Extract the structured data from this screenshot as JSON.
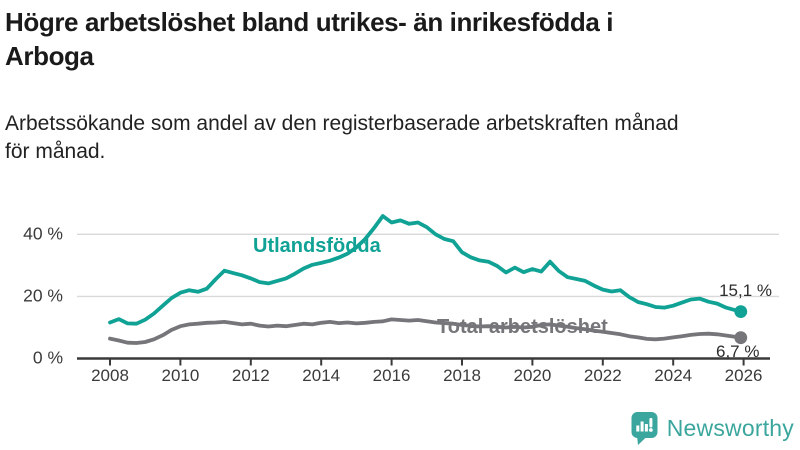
{
  "header": {
    "title_line1": "Högre arbetslöshet bland utrikes- än inrikesfödda i",
    "title_line2": "Arboga",
    "subtitle_line1": "Arbetssökande som andel av den registerbaserade arbetskraften månad",
    "subtitle_line2": "för månad."
  },
  "chart_data": {
    "type": "line",
    "title": "Högre arbetslöshet bland utrikes- än inrikesfödda i Arboga",
    "subtitle": "Arbetssökande som andel av den registerbaserade arbetskraften månad för månad.",
    "xlim": [
      2008,
      2026
    ],
    "ylim": [
      0,
      48
    ],
    "grid": "horizontal-only",
    "legend_position": "inline-labels-on-lines",
    "y_ticks": [
      {
        "value": 0,
        "label": "0 %"
      },
      {
        "value": 20,
        "label": "20 %"
      },
      {
        "value": 40,
        "label": "40 %"
      }
    ],
    "x_ticks": [
      2008,
      2010,
      2012,
      2014,
      2016,
      2018,
      2020,
      2022,
      2024,
      2026
    ],
    "x": [
      2008,
      2008.25,
      2008.5,
      2008.75,
      2009,
      2009.25,
      2009.5,
      2009.75,
      2010,
      2010.25,
      2010.5,
      2010.75,
      2011,
      2011.25,
      2011.5,
      2011.75,
      2012,
      2012.25,
      2012.5,
      2012.75,
      2013,
      2013.25,
      2013.5,
      2013.75,
      2014,
      2014.25,
      2014.5,
      2014.75,
      2015,
      2015.25,
      2015.5,
      2015.75,
      2016,
      2016.25,
      2016.5,
      2016.75,
      2017,
      2017.25,
      2017.5,
      2017.75,
      2018,
      2018.25,
      2018.5,
      2018.75,
      2019,
      2019.25,
      2019.5,
      2019.75,
      2020,
      2020.25,
      2020.5,
      2020.75,
      2021,
      2021.25,
      2021.5,
      2021.75,
      2022,
      2022.25,
      2022.5,
      2022.75,
      2023,
      2023.25,
      2023.5,
      2023.75,
      2024,
      2024.25,
      2024.5,
      2024.75,
      2025,
      2025.25,
      2025.5,
      2025.75,
      2025.92
    ],
    "series": [
      {
        "name": "Utlandsfödda",
        "color": "#10a295",
        "end_label": "15,1 %",
        "end_value": 15.1,
        "values": [
          11.6,
          12.7,
          11.3,
          11.2,
          12.5,
          14.5,
          17.0,
          19.5,
          21.2,
          22.0,
          21.5,
          22.5,
          25.5,
          28.3,
          27.5,
          26.8,
          25.8,
          24.6,
          24.2,
          25.0,
          25.8,
          27.3,
          29.0,
          30.2,
          30.8,
          31.5,
          32.5,
          33.8,
          35.8,
          38.5,
          42.0,
          45.9,
          43.8,
          44.5,
          43.4,
          43.8,
          42.3,
          40.0,
          38.5,
          37.8,
          34.2,
          32.6,
          31.6,
          31.2,
          29.8,
          27.7,
          29.3,
          27.8,
          28.8,
          28.0,
          31.2,
          28.2,
          26.2,
          25.6,
          25.0,
          23.5,
          22.2,
          21.6,
          22.0,
          19.8,
          18.2,
          17.5,
          16.6,
          16.4,
          17.0,
          18.0,
          19.0,
          19.3,
          18.3,
          17.7,
          16.4,
          15.6,
          15.1
        ]
      },
      {
        "name": "Total arbetslöshet",
        "color": "#76767a",
        "end_label": "6,7 %",
        "end_value": 6.7,
        "values": [
          6.4,
          5.8,
          5.1,
          5.0,
          5.3,
          6.2,
          7.5,
          9.2,
          10.4,
          11.0,
          11.2,
          11.5,
          11.6,
          11.8,
          11.4,
          11.0,
          11.2,
          10.6,
          10.3,
          10.6,
          10.4,
          10.8,
          11.2,
          11.0,
          11.5,
          11.8,
          11.4,
          11.6,
          11.3,
          11.5,
          11.8,
          12.0,
          12.6,
          12.4,
          12.2,
          12.4,
          12.0,
          11.6,
          11.4,
          11.2,
          10.8,
          10.5,
          10.3,
          10.4,
          10.2,
          10.0,
          10.2,
          10.0,
          10.2,
          10.8,
          11.0,
          10.6,
          10.2,
          9.8,
          9.4,
          9.0,
          8.6,
          8.2,
          7.8,
          7.2,
          6.8,
          6.3,
          6.2,
          6.4,
          6.8,
          7.2,
          7.6,
          7.9,
          8.0,
          7.8,
          7.4,
          7.0,
          6.7
        ]
      }
    ],
    "colors": {
      "grid": "#d9d9d9",
      "axis": "#3a3a3a",
      "tick_text": "#3b3b3b",
      "end_label_text": "#2d2d2d"
    }
  },
  "branding": {
    "logo_text": "Newsworthy",
    "logo_color": "#3ba69d",
    "icon": "newsworthy-speech-bubble-chart-icon"
  }
}
